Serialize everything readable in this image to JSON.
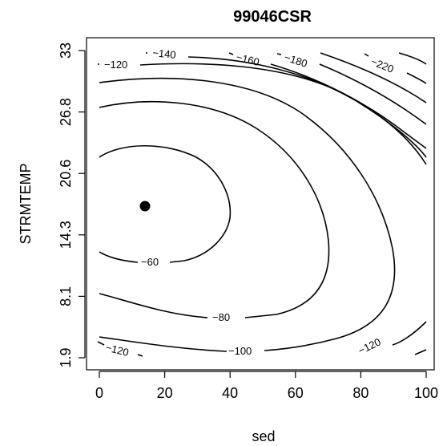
{
  "chart_data": {
    "type": "contour",
    "title": "99046CSR",
    "xlabel": "sed",
    "ylabel": "STRMTEMP",
    "x_ticks": [
      0,
      20,
      40,
      60,
      80,
      100
    ],
    "y_ticks": [
      "1.9",
      "8.1",
      "14.3",
      "20.6",
      "26.8",
      "33"
    ],
    "xlim": [
      0,
      100
    ],
    "ylim": [
      1.9,
      33
    ],
    "optimum_point": {
      "x": 14,
      "y": 17.6
    },
    "contours": [
      {
        "level": "-60",
        "label": "−60"
      },
      {
        "level": "-80",
        "label": "−80"
      },
      {
        "level": "-100",
        "label": "−100"
      },
      {
        "level": "-120",
        "label": "−120"
      },
      {
        "level": "-140",
        "label": "−140"
      },
      {
        "level": "-160",
        "label": "−160"
      },
      {
        "level": "-180",
        "label": "−180"
      },
      {
        "level": "-220",
        "label": "−220"
      }
    ]
  }
}
